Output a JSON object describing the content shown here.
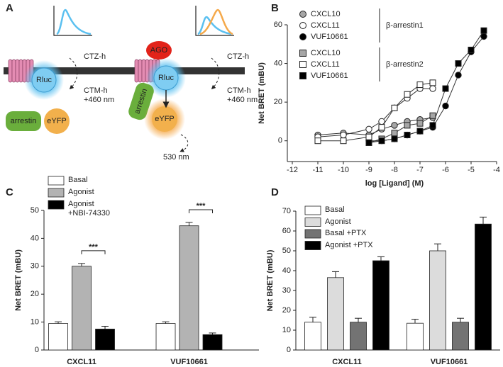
{
  "diagram": {
    "panel": "A",
    "left": {
      "donor": "Rluc",
      "arrestin": "arrestin",
      "acceptor": "eYFP",
      "substrate": "CTZ-h",
      "product": "CTM-h",
      "emission": "+460 nm"
    },
    "right": {
      "agonist": "AGO",
      "donor": "Rluc",
      "arrestin": "arrestin",
      "acceptor": "eYFP",
      "substrate": "CTZ-h",
      "product": "CTM-h",
      "emission": "+460 nm",
      "acceptor_emission": "530 nm"
    }
  },
  "chart_data": [
    {
      "type": "line",
      "panel": "B",
      "x_label": "log [Ligand] (M)",
      "y_label": "Net BRET (mBU)",
      "x": [
        -11,
        -10,
        -9,
        -8.5,
        -8,
        -7.5,
        -7,
        -6.5,
        -6,
        -5.5,
        -5,
        -4.5
      ],
      "xlim": [
        -12,
        -4
      ],
      "xticks": [
        -12,
        -11,
        -10,
        -9,
        -8,
        -7,
        -6,
        -5,
        -4
      ],
      "ylim": [
        -10,
        60
      ],
      "yticks": [
        0,
        20,
        40,
        60
      ],
      "legend_groups": [
        "β-arrestin1",
        "β-arrestin2"
      ],
      "series": [
        {
          "name": "CXCL10",
          "group": 0,
          "marker": "circle",
          "color": "#a6a6a6",
          "values": [
            3,
            4,
            3,
            6,
            8,
            10,
            11,
            12,
            null,
            null,
            null,
            null
          ]
        },
        {
          "name": "CXCL11",
          "group": 0,
          "marker": "circle",
          "color": "#ffffff",
          "values": [
            2,
            3,
            6,
            10,
            17,
            22,
            27,
            27,
            null,
            null,
            null,
            null
          ]
        },
        {
          "name": "VUF10661",
          "group": 0,
          "marker": "circle",
          "color": "#000000",
          "values": [
            null,
            null,
            0,
            0,
            1,
            3,
            5,
            7,
            18,
            34,
            46,
            54
          ]
        },
        {
          "name": "CXCL10",
          "group": 1,
          "marker": "square",
          "color": "#a6a6a6",
          "values": [
            null,
            null,
            -1,
            1,
            4,
            8,
            9,
            13,
            null,
            null,
            null,
            null
          ]
        },
        {
          "name": "CXCL11",
          "group": 1,
          "marker": "square",
          "color": "#ffffff",
          "values": [
            0,
            0,
            2,
            7,
            17,
            24,
            29,
            30,
            null,
            null,
            null,
            null
          ]
        },
        {
          "name": "VUF10661",
          "group": 1,
          "marker": "square",
          "color": "#000000",
          "values": [
            null,
            null,
            -1,
            0,
            1,
            3,
            5,
            8,
            27,
            40,
            47,
            57
          ]
        }
      ]
    },
    {
      "type": "bar",
      "panel": "C",
      "y_label": "Net BRET (mBU)",
      "categories": [
        "CXCL11",
        "VUF10661"
      ],
      "ylim": [
        0,
        50
      ],
      "yticks": [
        0,
        10,
        20,
        30,
        40,
        50
      ],
      "series": [
        {
          "name": "Basal",
          "color": "#ffffff",
          "values": [
            9.5,
            9.5
          ],
          "errors": [
            0.6,
            0.6
          ]
        },
        {
          "name": "Agonist",
          "color": "#b3b3b3",
          "values": [
            30,
            44.5
          ],
          "errors": [
            1,
            1.2
          ]
        },
        {
          "name": "Agonist\n+NBI-74330",
          "color": "#000000",
          "values": [
            7.5,
            5.5
          ],
          "errors": [
            1,
            0.6
          ]
        }
      ],
      "annotations": [
        "***",
        "***"
      ]
    },
    {
      "type": "bar",
      "panel": "D",
      "y_label": "Net BRET (mBU)",
      "categories": [
        "CXCL11",
        "VUF10661"
      ],
      "ylim": [
        0,
        70
      ],
      "yticks": [
        0,
        10,
        20,
        30,
        40,
        50,
        60,
        70
      ],
      "series": [
        {
          "name": "Basal",
          "color": "#ffffff",
          "values": [
            14,
            13.5
          ],
          "errors": [
            2.5,
            2
          ]
        },
        {
          "name": "Agonist",
          "color": "#dcdcdc",
          "values": [
            36.5,
            50
          ],
          "errors": [
            3,
            3.5
          ]
        },
        {
          "name": "Basal +PTX",
          "color": "#737373",
          "values": [
            14,
            14
          ],
          "errors": [
            2,
            2
          ]
        },
        {
          "name": "Agonist +PTX",
          "color": "#000000",
          "values": [
            45,
            63.5
          ],
          "errors": [
            2,
            3.5
          ]
        }
      ]
    }
  ]
}
